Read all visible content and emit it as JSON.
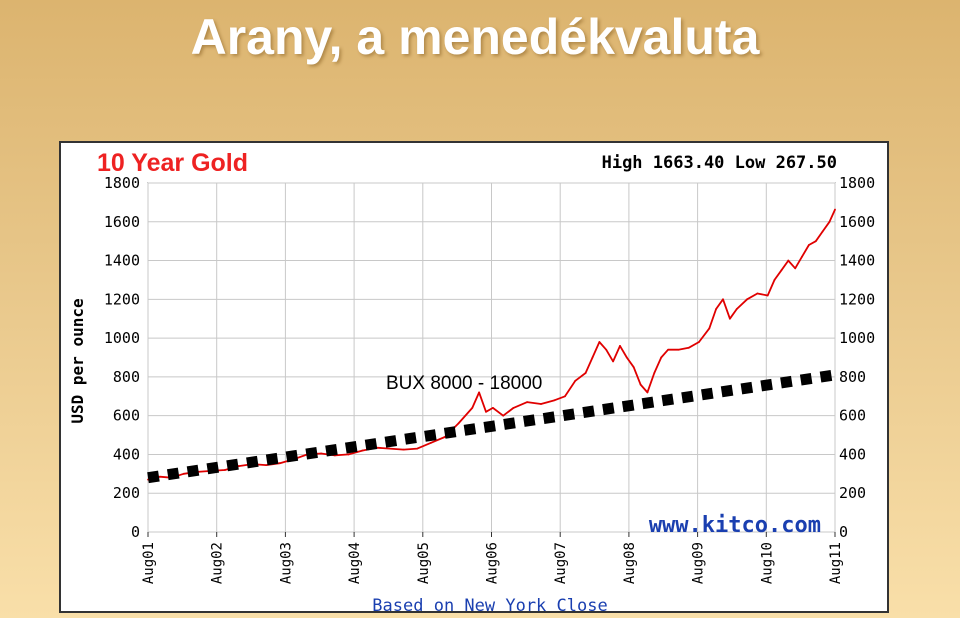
{
  "slide": {
    "title": "Arany, a menedékvaluta"
  },
  "chart_data": {
    "type": "line",
    "title": "10 Year Gold",
    "stats_text": "High 1663.40 Low 267.50",
    "ylabel": "USD per ounce",
    "xlabel": "Based on New York Close",
    "watermark": "www.kitco.com",
    "annotation": "BUX 8000 - 18000",
    "ylim": [
      0,
      1800
    ],
    "yticks": [
      0,
      200,
      400,
      600,
      800,
      1000,
      1200,
      1400,
      1600,
      1800
    ],
    "xlim": [
      2001.58,
      2011.58
    ],
    "xticks": [
      {
        "label": "Aug01",
        "x": 2001.58
      },
      {
        "label": "Aug02",
        "x": 2002.58
      },
      {
        "label": "Aug03",
        "x": 2003.58
      },
      {
        "label": "Aug04",
        "x": 2004.58
      },
      {
        "label": "Aug05",
        "x": 2005.58
      },
      {
        "label": "Aug06",
        "x": 2006.58
      },
      {
        "label": "Aug07",
        "x": 2007.58
      },
      {
        "label": "Aug08",
        "x": 2008.58
      },
      {
        "label": "Aug09",
        "x": 2009.58
      },
      {
        "label": "Aug10",
        "x": 2010.58
      },
      {
        "label": "Aug11",
        "x": 2011.58
      }
    ],
    "grid": true,
    "series": [
      {
        "color": "#e00000",
        "x": [
          2001.58,
          2001.75,
          2001.92,
          2002.1,
          2002.3,
          2002.5,
          2002.7,
          2002.9,
          2003.1,
          2003.3,
          2003.5,
          2003.7,
          2003.9,
          2004.1,
          2004.3,
          2004.5,
          2004.7,
          2004.9,
          2005.1,
          2005.3,
          2005.5,
          2005.7,
          2005.9,
          2006.1,
          2006.3,
          2006.4,
          2006.5,
          2006.6,
          2006.75,
          2006.9,
          2007.1,
          2007.3,
          2007.5,
          2007.65,
          2007.8,
          2007.95,
          2008.05,
          2008.15,
          2008.25,
          2008.35,
          2008.45,
          2008.55,
          2008.65,
          2008.75,
          2008.85,
          2008.95,
          2009.05,
          2009.15,
          2009.3,
          2009.45,
          2009.6,
          2009.75,
          2009.85,
          2009.95,
          2010.05,
          2010.15,
          2010.3,
          2010.45,
          2010.6,
          2010.7,
          2010.8,
          2010.9,
          2011.0,
          2011.1,
          2011.2,
          2011.3,
          2011.4,
          2011.5,
          2011.58
        ],
        "y": [
          270,
          285,
          280,
          300,
          310,
          315,
          320,
          340,
          350,
          345,
          355,
          375,
          400,
          405,
          395,
          400,
          420,
          435,
          430,
          425,
          430,
          460,
          490,
          560,
          640,
          720,
          620,
          640,
          600,
          640,
          670,
          660,
          680,
          700,
          780,
          820,
          900,
          980,
          940,
          880,
          960,
          900,
          850,
          760,
          720,
          820,
          900,
          940,
          940,
          950,
          980,
          1050,
          1150,
          1200,
          1100,
          1150,
          1200,
          1230,
          1220,
          1300,
          1350,
          1400,
          1360,
          1420,
          1480,
          1500,
          1550,
          1600,
          1663
        ]
      },
      {
        "x": [
          2001.58,
          2011.58
        ],
        "y": [
          280,
          810
        ],
        "color": "#000000",
        "style": "dashed"
      }
    ]
  }
}
